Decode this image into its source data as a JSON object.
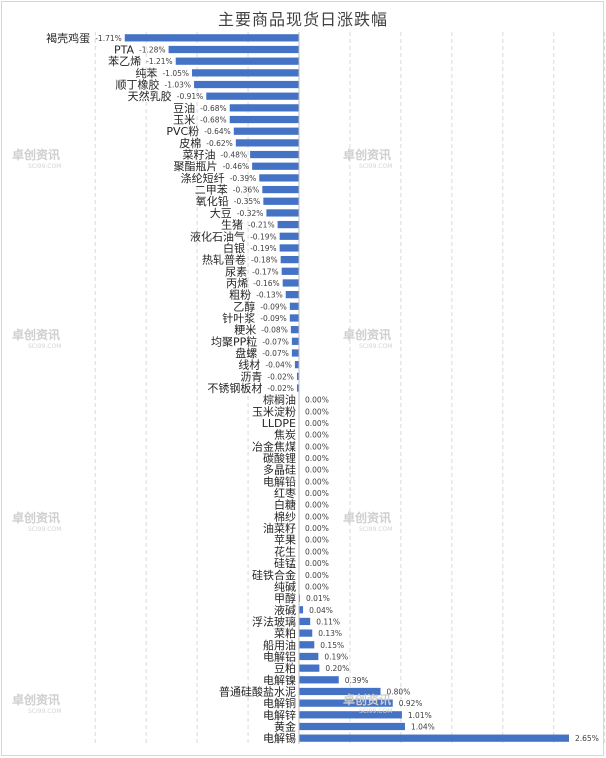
{
  "chart_data": {
    "type": "bar",
    "orientation": "horizontal",
    "title": "主要商品现货日涨跌幅",
    "bar_color": "#4472c4",
    "grid": "vertical dashed",
    "categories": [
      "褐壳鸡蛋",
      "PTA",
      "苯乙烯",
      "纯苯",
      "顺丁橡胶",
      "天然乳胶",
      "豆油",
      "玉米",
      "PVC粉",
      "皮棉",
      "菜籽油",
      "聚酯瓶片",
      "涤纶短纤",
      "二甲苯",
      "氧化铅",
      "大豆",
      "生猪",
      "液化石油气",
      "白银",
      "热轧普卷",
      "尿素",
      "丙烯",
      "粗粉",
      "乙醇",
      "针叶浆",
      "粳米",
      "均聚PP粒",
      "盘螺",
      "线材",
      "沥青",
      "不锈钢板材",
      "棕榈油",
      "玉米淀粉",
      "LLDPE",
      "焦炭",
      "冶金焦煤",
      "碳酸锂",
      "多晶硅",
      "电解铅",
      "红枣",
      "白糖",
      "棉纱",
      "油菜籽",
      "苹果",
      "花生",
      "硅锰",
      "硅铁合金",
      "纯碱",
      "甲醇",
      "液碱",
      "浮法玻璃",
      "菜粕",
      "船用油",
      "电解铝",
      "豆粕",
      "电解镍",
      "普通硅酸盐水泥",
      "电解铜",
      "电解锌",
      "黄金",
      "电解锡"
    ],
    "values": [
      -1.71,
      -1.28,
      -1.21,
      -1.05,
      -1.03,
      -0.91,
      -0.68,
      -0.68,
      -0.64,
      -0.62,
      -0.48,
      -0.46,
      -0.39,
      -0.36,
      -0.35,
      -0.32,
      -0.21,
      -0.19,
      -0.19,
      -0.18,
      -0.17,
      -0.16,
      -0.13,
      -0.09,
      -0.09,
      -0.08,
      -0.07,
      -0.07,
      -0.04,
      -0.02,
      -0.02,
      0.0,
      0.0,
      0.0,
      0.0,
      0.0,
      0.0,
      0.0,
      0.0,
      0.0,
      0.0,
      0.0,
      0.0,
      0.0,
      0.0,
      0.0,
      0.0,
      0.0,
      0.01,
      0.04,
      0.11,
      0.13,
      0.15,
      0.19,
      0.2,
      0.39,
      0.8,
      0.92,
      1.01,
      1.04,
      2.65
    ],
    "data_labels": [
      "-1.71%",
      "-1.28%",
      "-1.21%",
      "-1.05%",
      "-1.03%",
      "-0.91%",
      "-0.68%",
      "-0.68%",
      "-0.64%",
      "-0.62%",
      "-0.48%",
      "-0.46%",
      "-0.39%",
      "-0.36%",
      "-0.35%",
      "-0.32%",
      "-0.21%",
      "-0.19%",
      "-0.19%",
      "-0.18%",
      "-0.17%",
      "-0.16%",
      "-0.13%",
      "-0.09%",
      "-0.09%",
      "-0.08%",
      "-0.07%",
      "-0.07%",
      "-0.04%",
      "-0.02%",
      "-0.02%",
      "0.00%",
      "0.00%",
      "0.00%",
      "0.00%",
      "0.00%",
      "0.00%",
      "0.00%",
      "0.00%",
      "0.00%",
      "0.00%",
      "0.00%",
      "0.00%",
      "0.00%",
      "0.00%",
      "0.00%",
      "0.00%",
      "0.00%",
      "0.01%",
      "0.04%",
      "0.11%",
      "0.13%",
      "0.15%",
      "0.19%",
      "0.20%",
      "0.39%",
      "0.80%",
      "0.92%",
      "1.01%",
      "1.04%",
      "2.65%"
    ],
    "xlim": [
      -2.0,
      3.0
    ]
  },
  "watermark": {
    "brand": "卓创资讯",
    "domain": "SCI99.COM"
  }
}
